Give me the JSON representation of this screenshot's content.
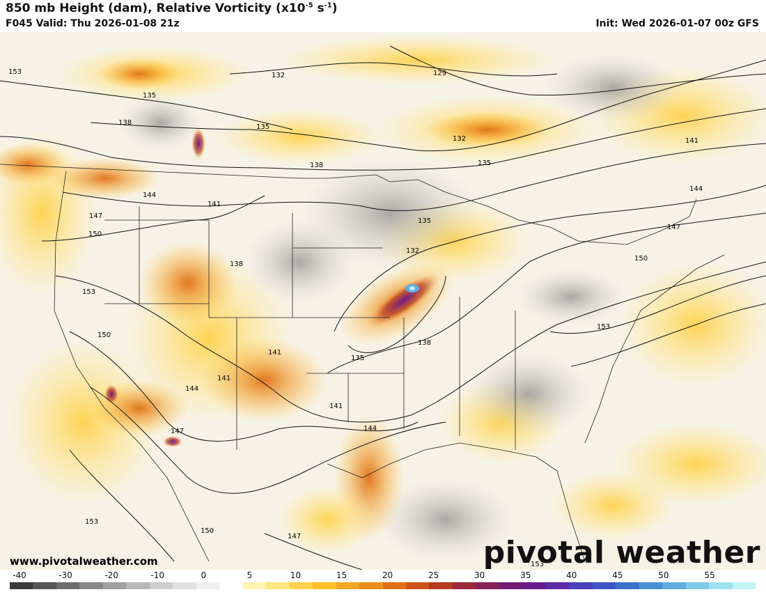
{
  "header": {
    "title_main": "850 mb Height (dam), Relative Vorticity (x10",
    "title_exp": "-5",
    "title_mid": " s",
    "title_exp2": "-1",
    "title_end": ")",
    "valid": "F045 Valid: Thu 2026-01-08 21z",
    "init": "Init: Wed 2026-01-07 00z GFS"
  },
  "watermark": {
    "url": "www.pivotalweather.com",
    "brand": "pivotal weather"
  },
  "colorbar": {
    "labels": [
      "-40",
      "-30",
      "-20",
      "-10",
      "0",
      "5",
      "10",
      "15",
      "20",
      "25",
      "30",
      "35",
      "40",
      "45",
      "50",
      "55"
    ],
    "colors": [
      "#3a3a3a",
      "#555555",
      "#6e6e6e",
      "#888888",
      "#a0a0a0",
      "#b8b8b8",
      "#cdcdcd",
      "#e0e0e0",
      "#f0f0f0",
      "#ffffff",
      "#fff3b0",
      "#ffe680",
      "#ffd24d",
      "#ffbf26",
      "#f5a623",
      "#ec8c1c",
      "#e07018",
      "#cf5216",
      "#b83a22",
      "#9c2a3a",
      "#862057",
      "#761a73",
      "#6a1d8e",
      "#5b2aa6",
      "#4a3fb8",
      "#3f55c4",
      "#3d70cc",
      "#4a8fd6",
      "#5faedf",
      "#7dcbe8",
      "#9de2ef",
      "#c0f4f6"
    ]
  },
  "height_contours": {
    "labels": [
      "132",
      "129",
      "135",
      "138",
      "135",
      "141",
      "138",
      "144",
      "147",
      "150",
      "153",
      "150",
      "147",
      "153",
      "150",
      "153",
      "132",
      "135",
      "132",
      "135",
      "138",
      "135",
      "138",
      "141",
      "144",
      "141",
      "144",
      "141",
      "147",
      "150",
      "153",
      "141",
      "144",
      "147",
      "153"
    ]
  }
}
